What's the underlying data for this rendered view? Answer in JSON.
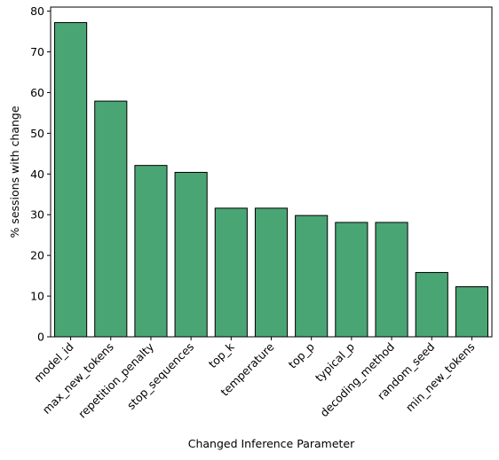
{
  "chart_data": {
    "type": "bar",
    "categories": [
      "model_id",
      "max_new_tokens",
      "repetition_penalty",
      "stop_sequences",
      "top_k",
      "temperature",
      "top_p",
      "typical_p",
      "decoding_method",
      "random_seed",
      "min_new_tokens"
    ],
    "values": [
      77.2,
      57.9,
      42.1,
      40.4,
      31.6,
      31.6,
      29.8,
      28.1,
      28.1,
      15.8,
      12.3
    ],
    "xlabel": "Changed Inference Parameter",
    "ylabel": "% sessions with change",
    "ylim": [
      0,
      81
    ],
    "yticks": [
      0,
      10,
      20,
      30,
      40,
      50,
      60,
      70,
      80
    ],
    "bar_color": "#4aa574",
    "edge_color": "#000000",
    "grid": false
  }
}
